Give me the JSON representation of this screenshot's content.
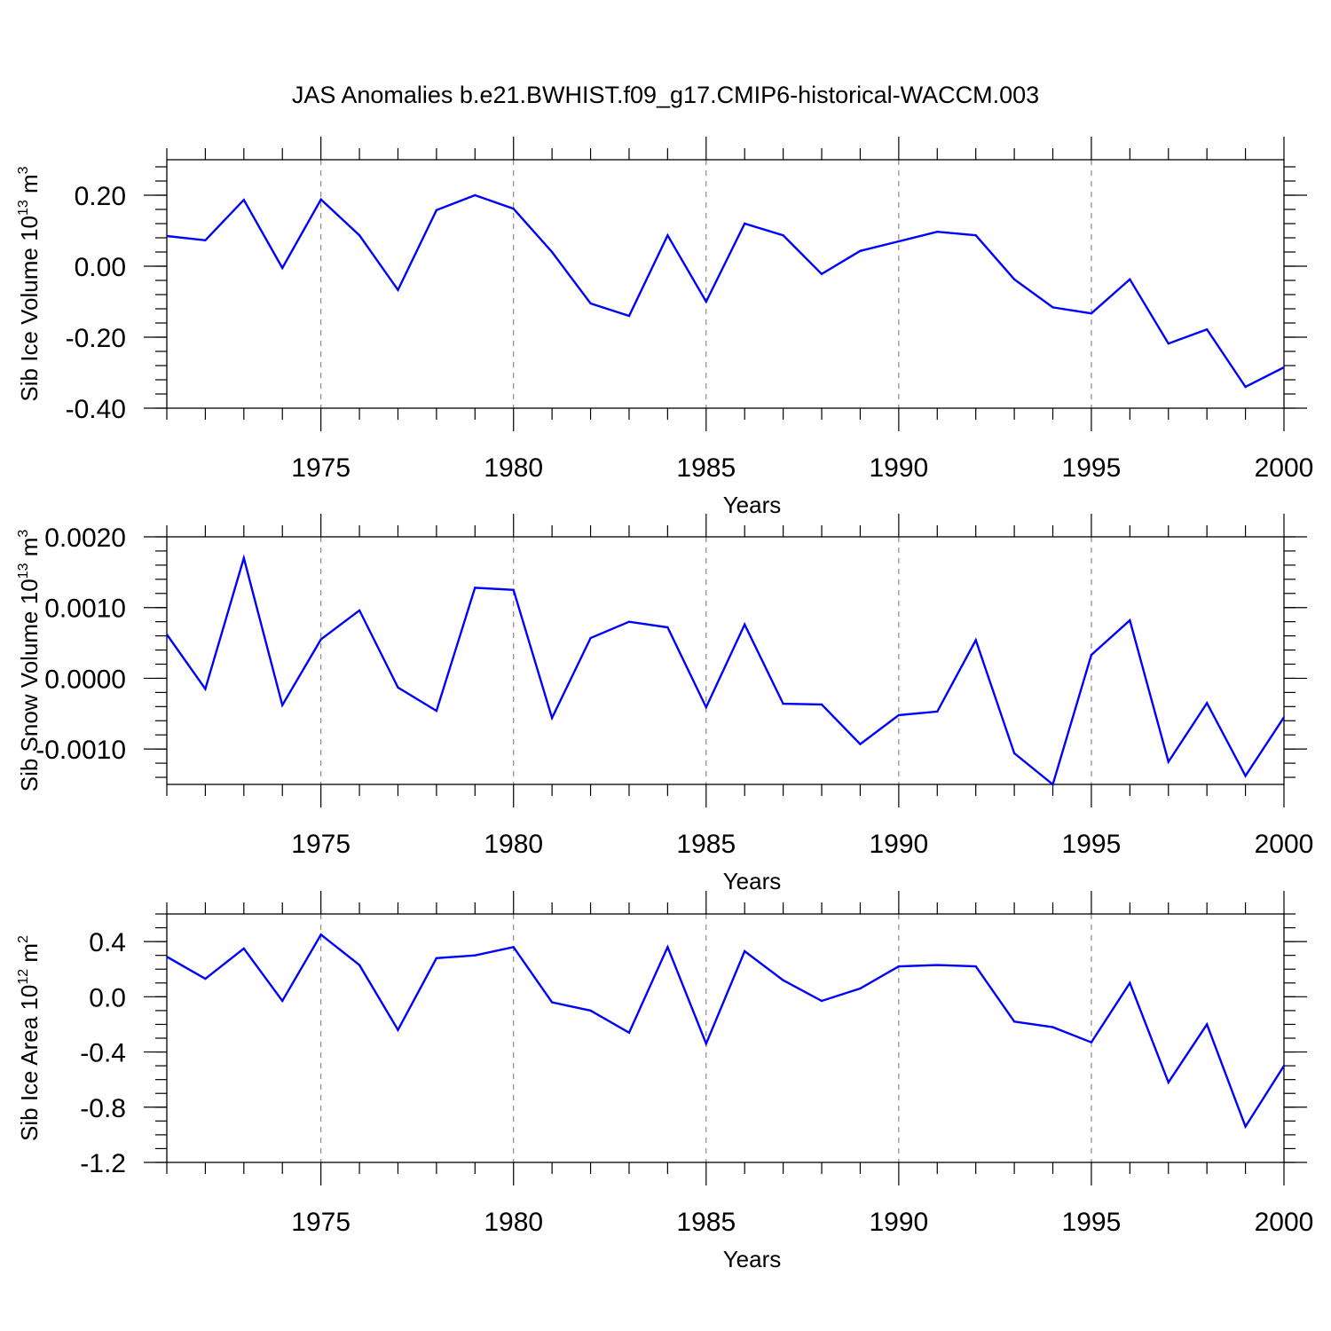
{
  "title": "JAS Anomalies b.e21.BWHIST.f09_g17.CMIP6-historical-WACCM.003",
  "chart_data": [
    {
      "type": "line",
      "panel": "top",
      "ylabel": "Sib Ice Volume 10",
      "ylabel_exp": "13",
      "ylabel_unit": " m",
      "ylabel_unit_exp": "3",
      "xlabel": "Years",
      "xlim": [
        1971,
        2000
      ],
      "ylim": [
        -0.4,
        0.3
      ],
      "yticks": [
        0.2,
        0.0,
        -0.2,
        -0.4
      ],
      "ytick_labels": [
        "0.20",
        "0.00",
        "-0.20",
        "-0.40"
      ],
      "ytick_minor_step": 0.04,
      "xticks": [
        1975,
        1980,
        1985,
        1990,
        1995,
        2000
      ],
      "xtick_labels": [
        "1975",
        "1980",
        "1985",
        "1990",
        "1995",
        "2000"
      ],
      "grid": "dashed vertical at major x ticks",
      "color": "#0000ff",
      "x": [
        1971,
        1972,
        1973,
        1974,
        1975,
        1976,
        1977,
        1978,
        1979,
        1980,
        1981,
        1982,
        1983,
        1984,
        1985,
        1986,
        1987,
        1988,
        1989,
        1990,
        1991,
        1992,
        1993,
        1994,
        1995,
        1996,
        1997,
        1998,
        1999,
        2000
      ],
      "values": [
        0.085,
        0.073,
        0.187,
        -0.005,
        0.188,
        0.087,
        -0.067,
        0.158,
        0.2,
        0.162,
        0.04,
        -0.105,
        -0.14,
        0.087,
        -0.1,
        0.12,
        0.087,
        -0.022,
        0.043,
        0.07,
        0.097,
        0.087,
        -0.037,
        -0.116,
        -0.133,
        -0.037,
        -0.218,
        -0.178,
        -0.34,
        -0.285
      ]
    },
    {
      "type": "line",
      "panel": "middle",
      "ylabel": "Sib Snow Volume 10",
      "ylabel_exp": "13",
      "ylabel_unit": " m",
      "ylabel_unit_exp": "3",
      "xlabel": "Years",
      "xlim": [
        1971,
        2000
      ],
      "ylim": [
        -0.0015,
        0.002
      ],
      "yticks": [
        0.002,
        0.001,
        0.0,
        -0.001
      ],
      "ytick_labels": [
        "0.0020",
        "0.0010",
        "0.0000",
        "-0.0010"
      ],
      "ytick_minor_step": 0.0002,
      "xticks": [
        1975,
        1980,
        1985,
        1990,
        1995,
        2000
      ],
      "xtick_labels": [
        "1975",
        "1980",
        "1985",
        "1990",
        "1995",
        "2000"
      ],
      "grid": "dashed vertical at major x ticks",
      "color": "#0000ff",
      "x": [
        1971,
        1972,
        1973,
        1974,
        1975,
        1976,
        1977,
        1978,
        1979,
        1980,
        1981,
        1982,
        1983,
        1984,
        1985,
        1986,
        1987,
        1988,
        1989,
        1990,
        1991,
        1992,
        1993,
        1994,
        1995,
        1996,
        1997,
        1998,
        1999,
        2000
      ],
      "values": [
        0.00062,
        -0.00015,
        0.0017,
        -0.00038,
        0.00055,
        0.00096,
        -0.00013,
        -0.00046,
        0.00128,
        0.00125,
        -0.00056,
        0.00057,
        0.0008,
        0.00072,
        -0.00041,
        0.00076,
        -0.00036,
        -0.00037,
        -0.00093,
        -0.00052,
        -0.00047,
        0.00054,
        -0.00106,
        -0.0015,
        0.00033,
        0.00082,
        -0.00118,
        -0.00035,
        -0.00138,
        -0.00055
      ]
    },
    {
      "type": "line",
      "panel": "bottom",
      "ylabel": "Sib Ice Area 10",
      "ylabel_exp": "12",
      "ylabel_unit": " m",
      "ylabel_unit_exp": "2",
      "xlabel": "Years",
      "xlim": [
        1971,
        2000
      ],
      "ylim": [
        -1.2,
        0.6
      ],
      "yticks": [
        0.4,
        0.0,
        -0.4,
        -0.8,
        -1.2
      ],
      "ytick_labels": [
        "0.4",
        "0.0",
        "-0.4",
        "-0.8",
        "-1.2"
      ],
      "ytick_minor_step": 0.1,
      "xticks": [
        1975,
        1980,
        1985,
        1990,
        1995,
        2000
      ],
      "xtick_labels": [
        "1975",
        "1980",
        "1985",
        "1990",
        "1995",
        "2000"
      ],
      "grid": "dashed vertical at major x ticks",
      "color": "#0000ff",
      "x": [
        1971,
        1972,
        1973,
        1974,
        1975,
        1976,
        1977,
        1978,
        1979,
        1980,
        1981,
        1982,
        1983,
        1984,
        1985,
        1986,
        1987,
        1988,
        1989,
        1990,
        1991,
        1992,
        1993,
        1994,
        1995,
        1996,
        1997,
        1998,
        1999,
        2000
      ],
      "values": [
        0.29,
        0.13,
        0.35,
        -0.03,
        0.45,
        0.23,
        -0.24,
        0.28,
        0.3,
        0.36,
        -0.04,
        -0.1,
        -0.26,
        0.36,
        -0.34,
        0.33,
        0.12,
        -0.03,
        0.06,
        0.22,
        0.23,
        0.22,
        -0.18,
        -0.22,
        -0.33,
        0.1,
        -0.62,
        -0.2,
        -0.94,
        -0.5
      ]
    }
  ]
}
